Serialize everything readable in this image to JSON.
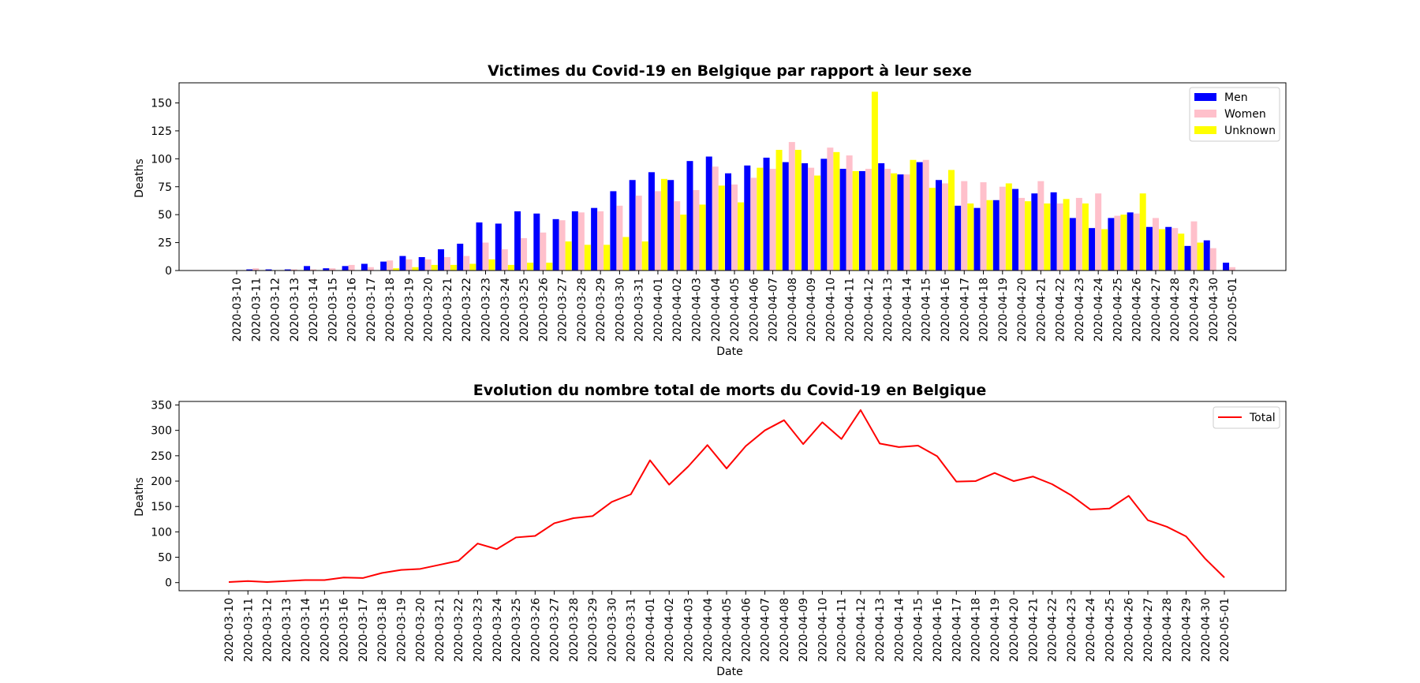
{
  "chart_data": [
    {
      "type": "bar",
      "title": "Victimes du Covid-19 en Belgique par rapport à leur sexe",
      "xlabel": "Date",
      "ylabel": "Deaths",
      "ylim": [
        0,
        168
      ],
      "yticks": [
        "0",
        "25",
        "50",
        "75",
        "100",
        "125",
        "150"
      ],
      "grid": false,
      "legend_position": "top-right",
      "categories": [
        "2020-03-10",
        "2020-03-11",
        "2020-03-12",
        "2020-03-13",
        "2020-03-14",
        "2020-03-15",
        "2020-03-16",
        "2020-03-17",
        "2020-03-18",
        "2020-03-19",
        "2020-03-20",
        "2020-03-21",
        "2020-03-22",
        "2020-03-23",
        "2020-03-24",
        "2020-03-25",
        "2020-03-26",
        "2020-03-27",
        "2020-03-28",
        "2020-03-29",
        "2020-03-30",
        "2020-03-31",
        "2020-04-01",
        "2020-04-02",
        "2020-04-03",
        "2020-04-04",
        "2020-04-05",
        "2020-04-06",
        "2020-04-07",
        "2020-04-08",
        "2020-04-09",
        "2020-04-10",
        "2020-04-11",
        "2020-04-12",
        "2020-04-13",
        "2020-04-14",
        "2020-04-15",
        "2020-04-16",
        "2020-04-17",
        "2020-04-18",
        "2020-04-19",
        "2020-04-20",
        "2020-04-21",
        "2020-04-22",
        "2020-04-23",
        "2020-04-24",
        "2020-04-25",
        "2020-04-26",
        "2020-04-27",
        "2020-04-28",
        "2020-04-29",
        "2020-04-30",
        "2020-05-01"
      ],
      "series": [
        {
          "name": "Men",
          "color": "#0000ff",
          "values": [
            0,
            1,
            1,
            1,
            4,
            2,
            4,
            6,
            8,
            13,
            12,
            19,
            24,
            43,
            42,
            53,
            51,
            46,
            53,
            56,
            71,
            81,
            88,
            81,
            98,
            102,
            87,
            94,
            101,
            97,
            96,
            100,
            91,
            89,
            96,
            86,
            97,
            81,
            58,
            56,
            63,
            73,
            69,
            70,
            47,
            38,
            47,
            52,
            39,
            39,
            22,
            27,
            7
          ]
        },
        {
          "name": "Women",
          "color": "#ffc0cb",
          "values": [
            0,
            2,
            0,
            1,
            1,
            2,
            5,
            3,
            9,
            10,
            10,
            12,
            13,
            25,
            19,
            29,
            34,
            45,
            52,
            53,
            58,
            67,
            71,
            62,
            72,
            93,
            77,
            83,
            91,
            115,
            92,
            110,
            103,
            91,
            91,
            86,
            99,
            78,
            80,
            79,
            75,
            65,
            80,
            60,
            65,
            69,
            49,
            51,
            47,
            38,
            44,
            20,
            3
          ]
        },
        {
          "name": "Unknown",
          "color": "#ffff00",
          "values": [
            0,
            0,
            0,
            0,
            0,
            0,
            0,
            0,
            2,
            3,
            5,
            5,
            6,
            10,
            5,
            7,
            7,
            26,
            23,
            23,
            30,
            26,
            82,
            50,
            59,
            76,
            61,
            92,
            108,
            108,
            85,
            106,
            89,
            160,
            87,
            99,
            74,
            90,
            60,
            63,
            78,
            62,
            60,
            64,
            60,
            37,
            50,
            69,
            37,
            33,
            25,
            0,
            0
          ]
        }
      ]
    },
    {
      "type": "line",
      "title": "Evolution du nombre total de morts du Covid-19 en Belgique",
      "xlabel": "Date",
      "ylabel": "Deaths",
      "ylim": [
        -16,
        357
      ],
      "yticks": [
        "0",
        "50",
        "100",
        "150",
        "200",
        "250",
        "300",
        "350"
      ],
      "grid": false,
      "legend_position": "top-right",
      "x": [
        "2020-03-10",
        "2020-03-11",
        "2020-03-12",
        "2020-03-13",
        "2020-03-14",
        "2020-03-15",
        "2020-03-16",
        "2020-03-17",
        "2020-03-18",
        "2020-03-19",
        "2020-03-20",
        "2020-03-21",
        "2020-03-22",
        "2020-03-23",
        "2020-03-24",
        "2020-03-25",
        "2020-03-26",
        "2020-03-27",
        "2020-03-28",
        "2020-03-29",
        "2020-03-30",
        "2020-03-31",
        "2020-04-01",
        "2020-04-02",
        "2020-04-03",
        "2020-04-04",
        "2020-04-05",
        "2020-04-06",
        "2020-04-07",
        "2020-04-08",
        "2020-04-09",
        "2020-04-10",
        "2020-04-11",
        "2020-04-12",
        "2020-04-13",
        "2020-04-14",
        "2020-04-15",
        "2020-04-16",
        "2020-04-17",
        "2020-04-18",
        "2020-04-19",
        "2020-04-20",
        "2020-04-21",
        "2020-04-22",
        "2020-04-23",
        "2020-04-24",
        "2020-04-25",
        "2020-04-26",
        "2020-04-27",
        "2020-04-28",
        "2020-04-29",
        "2020-04-30",
        "2020-05-01"
      ],
      "series": [
        {
          "name": "Total",
          "color": "#ff0000",
          "values": [
            1,
            3,
            1,
            3,
            5,
            5,
            10,
            9,
            19,
            25,
            27,
            35,
            43,
            77,
            66,
            89,
            92,
            117,
            127,
            131,
            159,
            174,
            241,
            193,
            229,
            271,
            225,
            269,
            300,
            320,
            273,
            316,
            283,
            340,
            274,
            267,
            270,
            249,
            199,
            200,
            216,
            200,
            209,
            194,
            172,
            144,
            146,
            171,
            123,
            110,
            91,
            47,
            10
          ]
        }
      ]
    }
  ]
}
